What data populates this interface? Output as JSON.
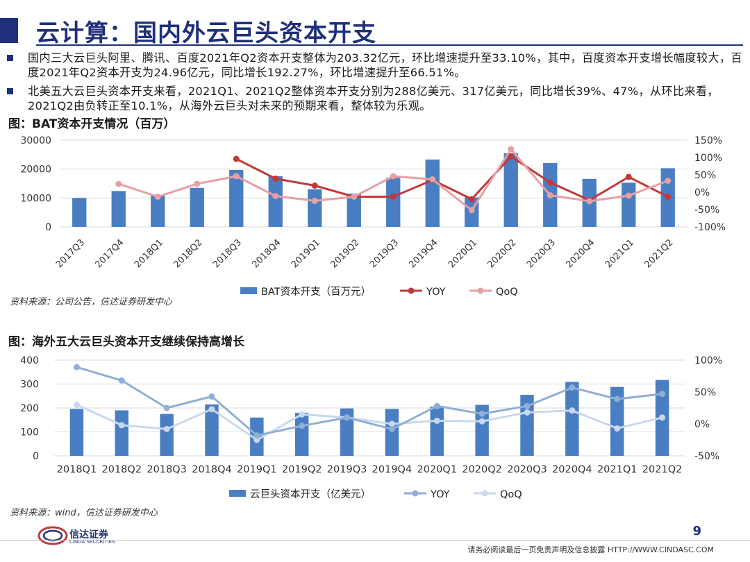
{
  "header": {
    "title": "云计算：国内外云巨头资本开支"
  },
  "bullets": [
    "国内三大云巨头阿里、腾讯、百度2021年Q2资本开支整体为203.32亿元，环比增速提升至33.10%，其中，百度资本开支增长幅度较大，百度2021年Q2资本开支为24.96亿元，同比增长192.27%，环比增速提升至66.51%。",
    "北美五大云巨头资本开支来看，2021Q1、2021Q2整体资本开支分别为288亿美元、317亿美元，同比增长39%、47%，从环比来看，2021Q2由负转正至10.1%，从海外云巨头对未来的预期来看，整体较为乐观。"
  ],
  "figure1": {
    "title": "图：BAT资本开支情况（百万）",
    "source": "资料来源：公司公告，信达证券研发中心"
  },
  "figure2": {
    "title": "图：海外五大云巨头资本开支继续保持高增长",
    "source": "资料来源：wind，信达证券研发中心"
  },
  "footer": {
    "page_number": "9",
    "disclaimer": "请务必阅读最后一页免责声明及信息披露  HTTP://WWW.CINDASC.COM",
    "logo_text": "信达证券",
    "logo_sub": "CINDA SECURITIES",
    "logo_icon": "cinda-logo-icon"
  },
  "colors": {
    "brand": "#1f2f7a",
    "bar": "#4a7ec2",
    "yoy1": "#c0393b",
    "qoq1": "#e6a0a4",
    "yoy2": "#8fafd5",
    "qoq2": "#c8d8ee"
  },
  "chart_data": [
    {
      "type": "bar",
      "title": "",
      "categories": [
        "2017Q3",
        "2017Q4",
        "2018Q1",
        "2018Q2",
        "2018Q3",
        "2018Q4",
        "2019Q1",
        "2019Q2",
        "2019Q3",
        "2019Q4",
        "2020Q1",
        "2020Q2",
        "2020Q3",
        "2020Q4",
        "2021Q1",
        "2021Q2"
      ],
      "y_left": {
        "ylim": [
          0,
          30000
        ],
        "ticks": [
          0,
          10000,
          20000,
          30000
        ],
        "tick_labels": [
          "0",
          "10000",
          "20000",
          "30000"
        ]
      },
      "y_right": {
        "ylim": [
          -100,
          150
        ],
        "ticks": [
          -100,
          -50,
          0,
          50,
          100,
          150
        ],
        "tick_labels": [
          "-100%",
          "-50%",
          "0%",
          "50%",
          "100%",
          "150%"
        ]
      },
      "series": [
        {
          "name": "BAT资本开支（百万元）",
          "type": "bar",
          "axis": "left",
          "values": [
            10000,
            12400,
            10800,
            13500,
            19700,
            17500,
            13000,
            11500,
            17000,
            23300,
            10200,
            25500,
            22100,
            16600,
            15300,
            20300
          ]
        },
        {
          "name": "YOY",
          "type": "line",
          "axis": "right",
          "values": [
            null,
            null,
            null,
            null,
            96,
            39,
            19,
            -13,
            -13,
            35,
            -20,
            103,
            28,
            -23,
            44,
            -13
          ]
        },
        {
          "name": "QoQ",
          "type": "line",
          "axis": "right",
          "values": [
            null,
            24,
            -13,
            24,
            46,
            -11,
            -25,
            -13,
            46,
            37,
            -52,
            124,
            -9,
            -26,
            -10,
            33
          ]
        }
      ],
      "legend": "bottom"
    },
    {
      "type": "bar",
      "title": "",
      "categories": [
        "2018Q1",
        "2018Q2",
        "2018Q3",
        "2018Q4",
        "2019Q1",
        "2019Q2",
        "2019Q3",
        "2019Q4",
        "2020Q1",
        "2020Q2",
        "2020Q3",
        "2020Q4",
        "2021Q1",
        "2021Q2"
      ],
      "y_left": {
        "ylim": [
          0,
          400
        ],
        "ticks": [
          0,
          100,
          200,
          300,
          400
        ],
        "tick_labels": [
          "0",
          "100",
          "200",
          "300",
          "400"
        ]
      },
      "y_right": {
        "ylim": [
          -50,
          100
        ],
        "ticks": [
          -50,
          0,
          50,
          100
        ],
        "tick_labels": [
          "-50%",
          "0%",
          "50%",
          "100%"
        ]
      },
      "series": [
        {
          "name": "云巨头资本开支（亿美元）",
          "type": "bar",
          "axis": "left",
          "values": [
            196,
            190,
            175,
            215,
            160,
            180,
            198,
            196,
            206,
            213,
            255,
            309,
            288,
            317
          ]
        },
        {
          "name": "YOY",
          "type": "line",
          "axis": "right",
          "values": [
            89,
            68,
            25,
            43,
            -18,
            -3,
            10,
            -8,
            28,
            16,
            28,
            57,
            39,
            47
          ]
        },
        {
          "name": "QoQ",
          "type": "line",
          "axis": "right",
          "values": [
            30,
            -2,
            -8,
            23,
            -25,
            15,
            10,
            0,
            5,
            4,
            18,
            21,
            -7,
            10
          ]
        }
      ],
      "legend": "bottom"
    }
  ]
}
